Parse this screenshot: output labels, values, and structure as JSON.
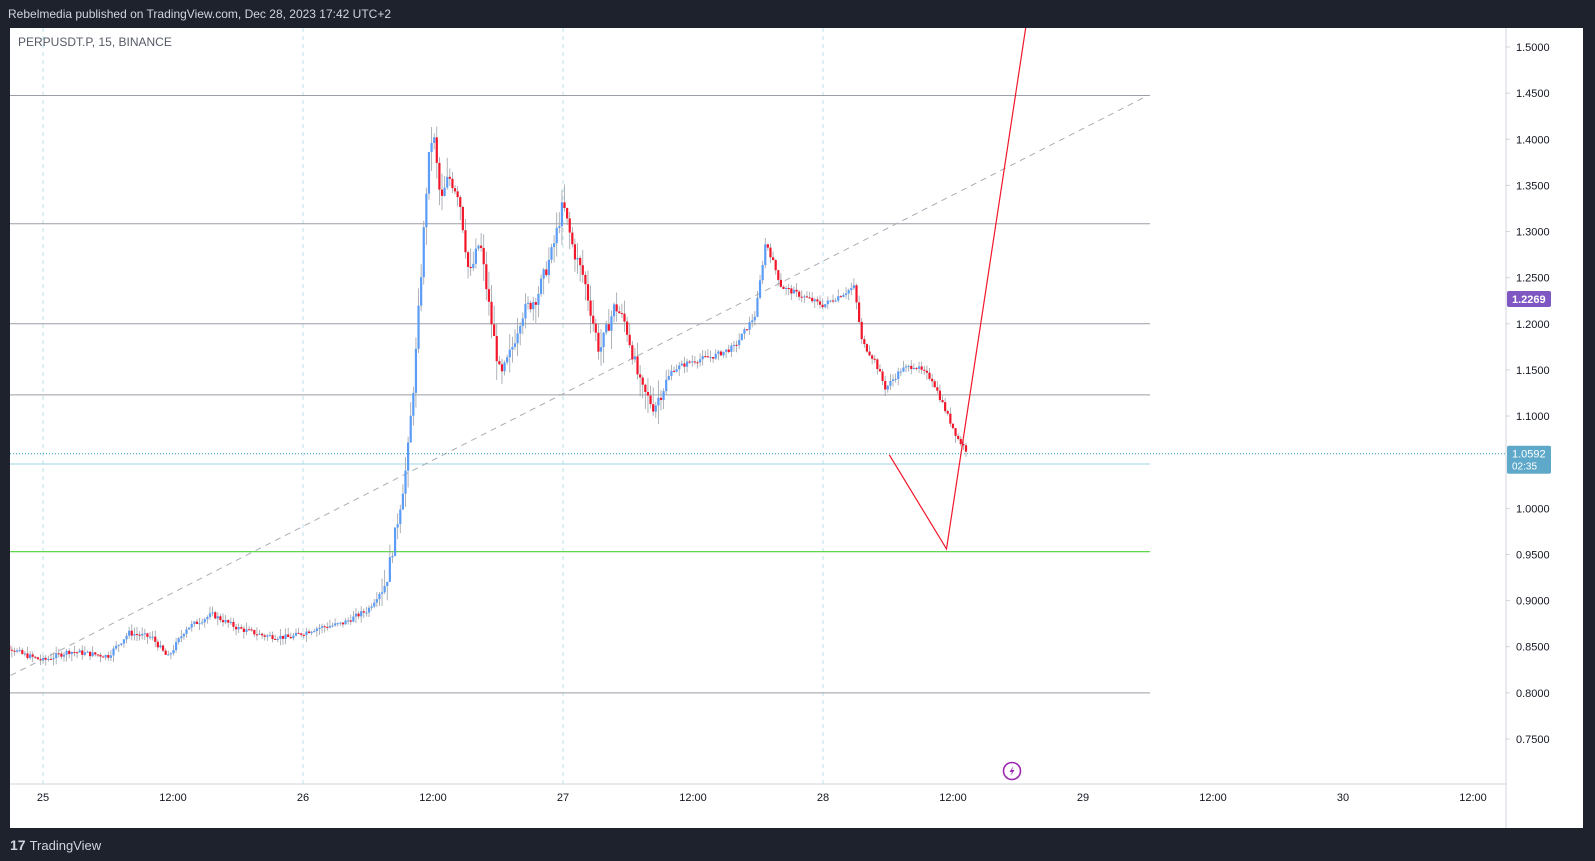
{
  "header": {
    "publish_text": "Rebelmedia published on TradingView.com, Dec 28, 2023 17:42 UTC+2"
  },
  "symbol": {
    "label": "PERPUSDT.P, 15, BINANCE"
  },
  "footer": {
    "brand": "TradingView"
  },
  "colors": {
    "up": "#5b9cf6",
    "down": "#f2162a",
    "support": "#4cd137",
    "projection": "#f2162a",
    "last_price_bg": "#5ea8c9",
    "last_price_marker_bg": "#7e57c2"
  },
  "chart_data": {
    "type": "candlestick",
    "x_ticks": [
      "25",
      "12:00",
      "26",
      "12:00",
      "27",
      "12:00",
      "28",
      "12:00",
      "29",
      "12:00",
      "30",
      "12:00"
    ],
    "y_ticks": [
      "1.5000",
      "1.4500",
      "1.4000",
      "1.3500",
      "1.3000",
      "1.2500",
      "1.2000",
      "1.1500",
      "1.1000",
      "1.0500",
      "1.0000",
      "0.9500",
      "0.9000",
      "0.8500",
      "0.8000",
      "0.7500"
    ],
    "ylim": [
      0.7,
      1.53
    ],
    "horizontal_levels": [
      1.4475,
      1.3085,
      1.2,
      1.123,
      1.048,
      0.8
    ],
    "support_level": 0.953,
    "last_price": {
      "value": 1.0592,
      "label": "1.0592",
      "countdown": "02:35"
    },
    "marker_price": {
      "value": 1.2269,
      "label": "1.2269"
    },
    "trendline": {
      "from": {
        "day": 24.8,
        "price": 0.808
      },
      "to": {
        "day": 29.25,
        "price": 1.4475
      }
    },
    "projection_path": [
      {
        "day": 28.255,
        "price": 1.058
      },
      {
        "day": 28.475,
        "price": 0.956
      },
      {
        "day": 28.79,
        "price": 1.54
      }
    ],
    "price_path": [
      {
        "day": 24.8,
        "price": 0.86
      },
      {
        "day": 24.92,
        "price": 0.842
      },
      {
        "day": 25.0,
        "price": 0.835
      },
      {
        "day": 25.1,
        "price": 0.845
      },
      {
        "day": 25.25,
        "price": 0.84
      },
      {
        "day": 25.33,
        "price": 0.865
      },
      {
        "day": 25.42,
        "price": 0.86
      },
      {
        "day": 25.48,
        "price": 0.838
      },
      {
        "day": 25.55,
        "price": 0.87
      },
      {
        "day": 25.65,
        "price": 0.885
      },
      {
        "day": 25.75,
        "price": 0.87
      },
      {
        "day": 25.85,
        "price": 0.862
      },
      {
        "day": 25.95,
        "price": 0.86
      },
      {
        "day": 26.05,
        "price": 0.87
      },
      {
        "day": 26.15,
        "price": 0.875
      },
      {
        "day": 26.25,
        "price": 0.89
      },
      {
        "day": 26.32,
        "price": 0.92
      },
      {
        "day": 26.36,
        "price": 0.98
      },
      {
        "day": 26.4,
        "price": 1.05
      },
      {
        "day": 26.43,
        "price": 1.15
      },
      {
        "day": 26.46,
        "price": 1.28
      },
      {
        "day": 26.48,
        "price": 1.37
      },
      {
        "day": 26.5,
        "price": 1.41
      },
      {
        "day": 26.53,
        "price": 1.33
      },
      {
        "day": 26.56,
        "price": 1.36
      },
      {
        "day": 26.6,
        "price": 1.34
      },
      {
        "day": 26.64,
        "price": 1.25
      },
      {
        "day": 26.68,
        "price": 1.29
      },
      {
        "day": 26.72,
        "price": 1.21
      },
      {
        "day": 26.76,
        "price": 1.14
      },
      {
        "day": 26.8,
        "price": 1.17
      },
      {
        "day": 26.84,
        "price": 1.21
      },
      {
        "day": 26.9,
        "price": 1.23
      },
      {
        "day": 26.96,
        "price": 1.28
      },
      {
        "day": 27.0,
        "price": 1.33
      },
      {
        "day": 27.04,
        "price": 1.28
      },
      {
        "day": 27.08,
        "price": 1.25
      },
      {
        "day": 27.14,
        "price": 1.17
      },
      {
        "day": 27.2,
        "price": 1.22
      },
      {
        "day": 27.24,
        "price": 1.2
      },
      {
        "day": 27.3,
        "price": 1.13
      },
      {
        "day": 27.35,
        "price": 1.11
      },
      {
        "day": 27.42,
        "price": 1.15
      },
      {
        "day": 27.5,
        "price": 1.16
      },
      {
        "day": 27.58,
        "price": 1.165
      },
      {
        "day": 27.66,
        "price": 1.175
      },
      {
        "day": 27.74,
        "price": 1.21
      },
      {
        "day": 27.78,
        "price": 1.29
      },
      {
        "day": 27.84,
        "price": 1.24
      },
      {
        "day": 27.92,
        "price": 1.23
      },
      {
        "day": 28.0,
        "price": 1.22
      },
      {
        "day": 28.06,
        "price": 1.23
      },
      {
        "day": 28.12,
        "price": 1.24
      },
      {
        "day": 28.15,
        "price": 1.18
      },
      {
        "day": 28.2,
        "price": 1.16
      },
      {
        "day": 28.24,
        "price": 1.13
      },
      {
        "day": 28.3,
        "price": 1.15
      },
      {
        "day": 28.35,
        "price": 1.155
      },
      {
        "day": 28.42,
        "price": 1.14
      },
      {
        "day": 28.48,
        "price": 1.1
      },
      {
        "day": 28.52,
        "price": 1.075
      },
      {
        "day": 28.56,
        "price": 1.06
      }
    ]
  }
}
